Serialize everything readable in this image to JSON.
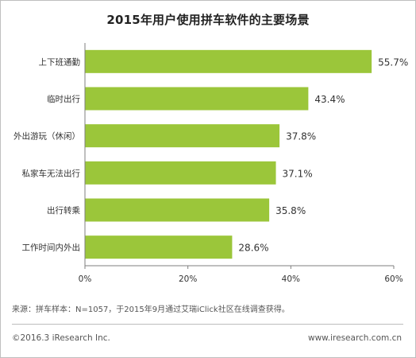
{
  "title": "2015年用户使用拼车软件的主要场景",
  "source_note": "来源：拼车样本：N=1057，于2015年9月通过艾瑞iClick社区在线调查获得。",
  "footer": {
    "copyright": "©2016.3 iResearch Inc.",
    "website": "www.iresearch.com.cn"
  },
  "colors": {
    "bar": "#9bc63a",
    "axis": "#7f7f7f",
    "text": "#333333"
  },
  "chart_data": {
    "type": "bar",
    "orientation": "horizontal",
    "categories": [
      "上下班通勤",
      "临时出行",
      "外出游玩（休闲）",
      "私家车无法出行",
      "出行转乘",
      "工作时间内外出"
    ],
    "values": [
      55.7,
      43.4,
      37.8,
      37.1,
      35.8,
      28.6
    ],
    "value_labels": [
      "55.7%",
      "43.4%",
      "37.8%",
      "37.1%",
      "35.8%",
      "28.6%"
    ],
    "x_ticks": [
      "0%",
      "20%",
      "40%",
      "60%"
    ],
    "xlim": [
      0,
      60
    ],
    "unit": "%",
    "grid": false,
    "legend": "none"
  }
}
